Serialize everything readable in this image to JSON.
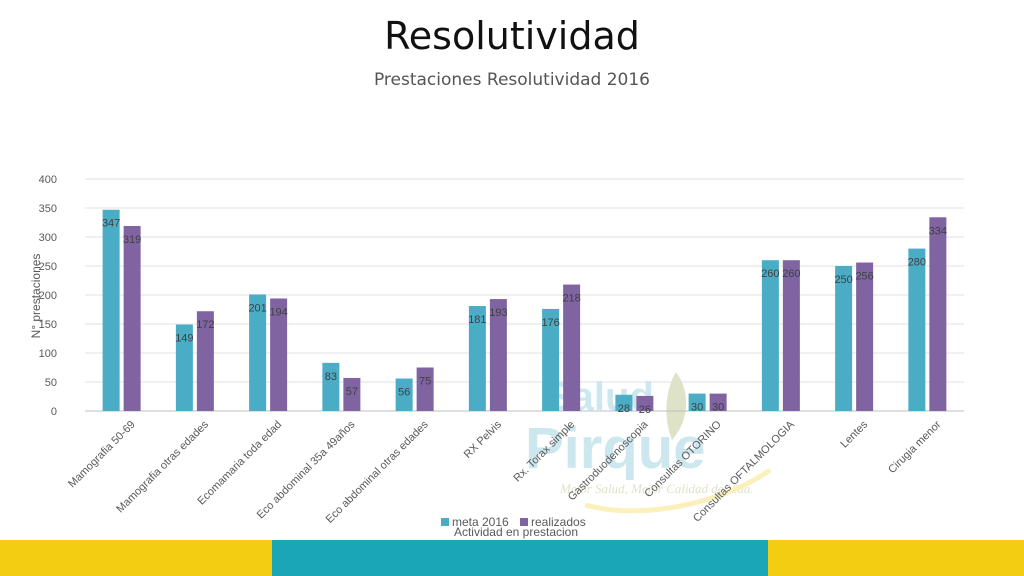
{
  "slide": {
    "title": "Resolutividad",
    "subtitle": "Prestaciones Resolutividad 2016"
  },
  "watermark": {
    "line1": "Salud",
    "line2": "Pirque",
    "tagline": "Mejor Salud, Mejor Calidad de Vida."
  },
  "colors": {
    "meta": "#4bacc6",
    "realizados": "#8064a2",
    "band_yellow": "#f2cd12",
    "band_teal": "#1aa6b7"
  },
  "chart_data": {
    "type": "bar",
    "title": "Prestaciones Resolutividad 2016",
    "xlabel": "Actividad en prestacion",
    "ylabel": "N° prestaciones",
    "ylim": [
      0,
      400
    ],
    "yticks": [
      0,
      50,
      100,
      150,
      200,
      250,
      300,
      350,
      400
    ],
    "grid": true,
    "legend": "bottom",
    "categories": [
      "Mamografia 50-69",
      "Mamografia otras edades",
      "Ecomamaria toda edad",
      "Eco abdominal 35a 49años",
      "Eco abdominal otras edades",
      "RX Pelvis",
      "Rx. Torax simple",
      "Gastroduodenoscopia",
      "Consultas OTORINO",
      "Consultas OFTALMOLOGIA",
      "Lentes",
      "Cirugia menor"
    ],
    "series": [
      {
        "name": "meta 2016",
        "values": [
          347,
          149,
          201,
          83,
          56,
          181,
          176,
          28,
          30,
          260,
          250,
          280
        ]
      },
      {
        "name": "realizados",
        "values": [
          319,
          172,
          194,
          57,
          75,
          193,
          218,
          26,
          30,
          260,
          256,
          334
        ]
      }
    ]
  }
}
